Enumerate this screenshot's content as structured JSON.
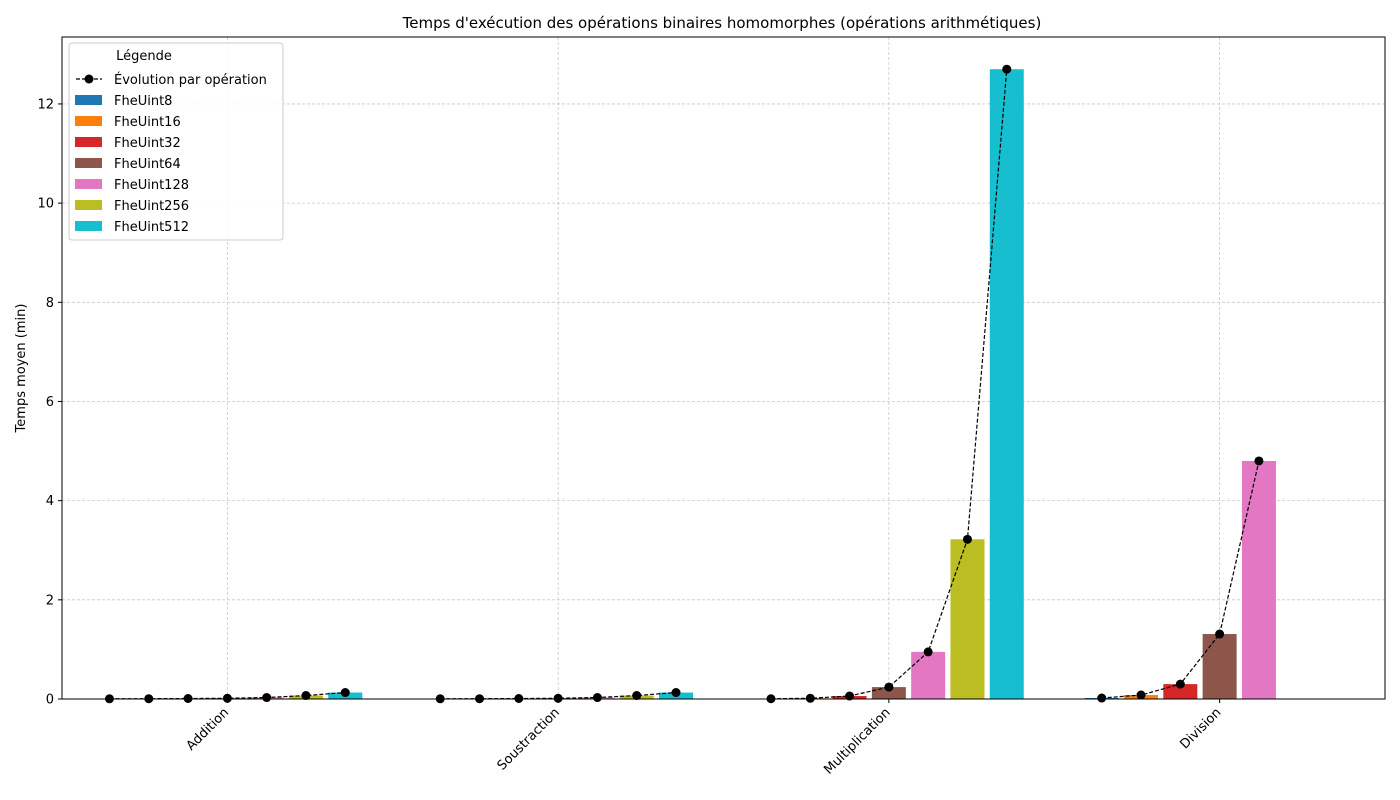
{
  "chart_data": {
    "type": "bar",
    "title": "Temps d'exécution des opérations binaires homomorphes (opérations arithmétiques)",
    "xlabel": "",
    "ylabel": "Temps moyen (min)",
    "ylim": [
      0,
      13.35
    ],
    "yticks": [
      0,
      2,
      4,
      6,
      8,
      10,
      12
    ],
    "grid": true,
    "legend_title": "Légende",
    "legend_position": "top-left",
    "categories": [
      "Addition",
      "Soustraction",
      "Multiplication",
      "Division"
    ],
    "line_series": {
      "name": "Évolution par opération",
      "color": "#000000",
      "style": "dashed",
      "marker": "circle"
    },
    "series": [
      {
        "name": "FheUint8",
        "color": "#1f77b4",
        "values": [
          0.004,
          0.004,
          0.005,
          0.02
        ]
      },
      {
        "name": "FheUint16",
        "color": "#ff7f0e",
        "values": [
          0.006,
          0.006,
          0.015,
          0.08
        ]
      },
      {
        "name": "FheUint32",
        "color": "#d62728",
        "values": [
          0.01,
          0.01,
          0.06,
          0.3
        ]
      },
      {
        "name": "FheUint64",
        "color": "#8c564b",
        "values": [
          0.015,
          0.015,
          0.24,
          1.31
        ]
      },
      {
        "name": "FheUint128",
        "color": "#e377c2",
        "values": [
          0.03,
          0.03,
          0.95,
          4.8
        ]
      },
      {
        "name": "FheUint256",
        "color": "#bcbd22",
        "values": [
          0.07,
          0.07,
          3.22,
          null
        ]
      },
      {
        "name": "FheUint512",
        "color": "#17becf",
        "values": [
          0.13,
          0.13,
          12.7,
          null
        ]
      }
    ]
  }
}
